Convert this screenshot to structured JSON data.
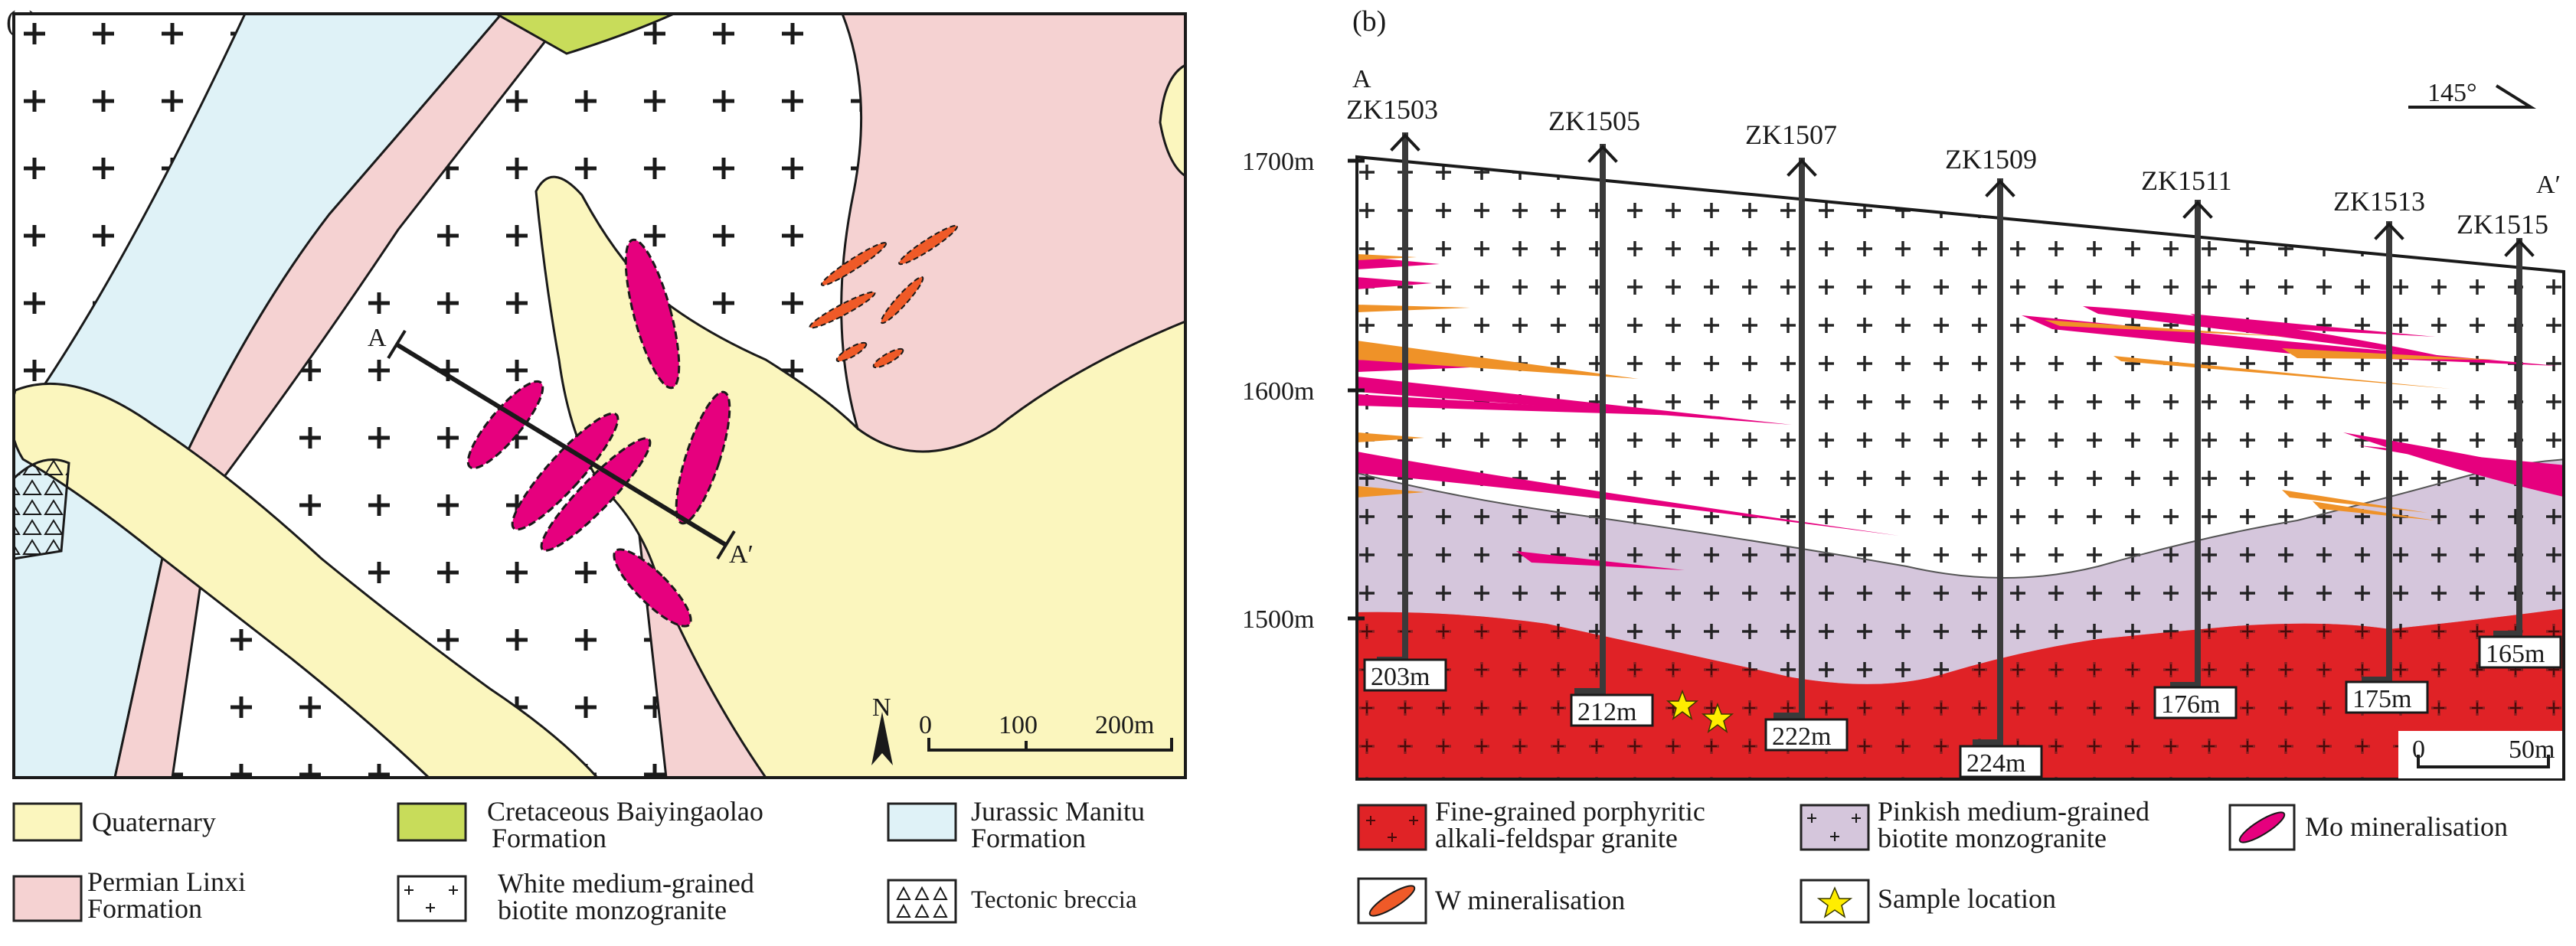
{
  "panel_a": {
    "label": "(a)",
    "section_start": "A",
    "section_end": "A′",
    "north": "N",
    "scale": {
      "t0": "0",
      "t1": "100",
      "t2": "200m"
    }
  },
  "panel_b": {
    "label": "(b)",
    "orientation": "145°",
    "section_start": "A",
    "section_end": "A′",
    "elevations": [
      "1700m",
      "1600m",
      "1500m"
    ],
    "drill_holes": [
      {
        "id": "ZK1503",
        "depth": "203m"
      },
      {
        "id": "ZK1505",
        "depth": "212m"
      },
      {
        "id": "ZK1507",
        "depth": "222m"
      },
      {
        "id": "ZK1509",
        "depth": "224m"
      },
      {
        "id": "ZK1511",
        "depth": "176m"
      },
      {
        "id": "ZK1513",
        "depth": "175m"
      },
      {
        "id": "ZK1515",
        "depth": "165m"
      }
    ],
    "scale": {
      "t0": "0",
      "t1": "50m"
    }
  },
  "legend_a": {
    "quaternary": "Quaternary",
    "cretaceous_1": "Cretaceous Baiyingaolao",
    "cretaceous_2": "Formation",
    "jurassic_1": "Jurassic Manitu",
    "jurassic_2": "Formation",
    "permian_1": "Permian Linxi",
    "permian_2": "Formation",
    "white_granite_1": "White medium-grained",
    "white_granite_2": "biotite monzogranite",
    "breccia": "Tectonic breccia"
  },
  "legend_b": {
    "fine_granite_1": "Fine-grained porphyritic",
    "fine_granite_2": "alkali-feldspar granite",
    "pinkish_1": "Pinkish medium-grained",
    "pinkish_2": "biotite monzogranite",
    "mo": "Mo  mineralisation",
    "w": "W mineralisation",
    "sample": "Sample  location"
  },
  "colors": {
    "quaternary": "#fbf6be",
    "cretaceous": "#c8dc5a",
    "jurassic": "#dff2f7",
    "permian": "#f5d2d2",
    "fine_granite": "#e02326",
    "pinkish_granite": "#d5c6dc",
    "mo": "#e6007e",
    "w": "#ef5a28",
    "w_section": "#ef9228",
    "sample": "#ffed00"
  }
}
